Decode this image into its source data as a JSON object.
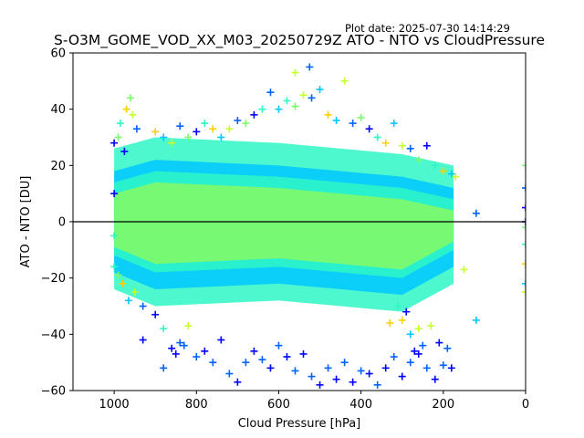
{
  "plot_date": "Plot date: 2025-07-30 14:14:29",
  "chart_data": {
    "type": "scatter",
    "title": "S-O3M_GOME_VOD_XX_M03_20250729Z ATO - NTO vs CloudPressure",
    "xlabel": "Cloud Pressure [hPa]",
    "ylabel": "ATO - NTO [DU]",
    "xlim": [
      1100,
      0
    ],
    "ylim": [
      -60,
      60
    ],
    "x_inverted": true,
    "xticks": [
      1000,
      800,
      600,
      400,
      200,
      0
    ],
    "yticks": [
      60,
      40,
      20,
      0,
      -20,
      -40,
      -60
    ],
    "xtick_labels": [
      "1000",
      "800",
      "600",
      "400",
      "200",
      "0"
    ],
    "ytick_labels": [
      "60",
      "40",
      "20",
      "0",
      "−20",
      "−40",
      "−60"
    ],
    "marker": "+",
    "reference_line_y": 0,
    "colormap": [
      "#0000ff",
      "#0062ff",
      "#00c8ff",
      "#2ff7c5",
      "#7cf96f",
      "#c5ff2e",
      "#ffd000"
    ],
    "grid": false,
    "points": [
      [
        1000,
        28
      ],
      [
        985,
        35
      ],
      [
        970,
        40
      ],
      [
        960,
        44
      ],
      [
        955,
        38
      ],
      [
        945,
        33
      ],
      [
        990,
        30
      ],
      [
        975,
        25
      ],
      [
        1000,
        -16
      ],
      [
        980,
        -22
      ],
      [
        965,
        -28
      ],
      [
        950,
        -25
      ],
      [
        930,
        -30
      ],
      [
        990,
        -19
      ],
      [
        1000,
        10
      ],
      [
        1000,
        -5
      ],
      [
        900,
        32
      ],
      [
        880,
        30
      ],
      [
        860,
        28
      ],
      [
        840,
        34
      ],
      [
        820,
        30
      ],
      [
        800,
        32
      ],
      [
        780,
        35
      ],
      [
        760,
        33
      ],
      [
        740,
        30
      ],
      [
        720,
        33
      ],
      [
        700,
        36
      ],
      [
        680,
        35
      ],
      [
        660,
        38
      ],
      [
        640,
        40
      ],
      [
        620,
        46
      ],
      [
        600,
        40
      ],
      [
        580,
        43
      ],
      [
        560,
        41
      ],
      [
        540,
        45
      ],
      [
        520,
        44
      ],
      [
        500,
        47
      ],
      [
        480,
        38
      ],
      [
        460,
        36
      ],
      [
        440,
        50
      ],
      [
        420,
        35
      ],
      [
        400,
        37
      ],
      [
        380,
        33
      ],
      [
        360,
        30
      ],
      [
        340,
        28
      ],
      [
        320,
        35
      ],
      [
        300,
        27
      ],
      [
        280,
        26
      ],
      [
        260,
        22
      ],
      [
        240,
        27
      ],
      [
        220,
        20
      ],
      [
        200,
        18
      ],
      [
        180,
        17
      ],
      [
        170,
        16
      ],
      [
        560,
        53
      ],
      [
        525,
        55
      ],
      [
        900,
        -33
      ],
      [
        880,
        -38
      ],
      [
        860,
        -45
      ],
      [
        840,
        -43
      ],
      [
        820,
        -37
      ],
      [
        800,
        -48
      ],
      [
        780,
        -46
      ],
      [
        760,
        -50
      ],
      [
        740,
        -42
      ],
      [
        720,
        -54
      ],
      [
        700,
        -57
      ],
      [
        680,
        -50
      ],
      [
        660,
        -46
      ],
      [
        640,
        -49
      ],
      [
        620,
        -52
      ],
      [
        600,
        -44
      ],
      [
        580,
        -48
      ],
      [
        560,
        -53
      ],
      [
        540,
        -47
      ],
      [
        520,
        -55
      ],
      [
        500,
        -58
      ],
      [
        480,
        -52
      ],
      [
        460,
        -56
      ],
      [
        440,
        -50
      ],
      [
        420,
        -57
      ],
      [
        400,
        -53
      ],
      [
        380,
        -54
      ],
      [
        360,
        -58
      ],
      [
        340,
        -52
      ],
      [
        320,
        -48
      ],
      [
        300,
        -55
      ],
      [
        280,
        -50
      ],
      [
        260,
        -47
      ],
      [
        240,
        -52
      ],
      [
        220,
        -56
      ],
      [
        200,
        -51
      ],
      [
        180,
        -52
      ],
      [
        190,
        -45
      ],
      [
        210,
        -43
      ],
      [
        230,
        -37
      ],
      [
        930,
        -42
      ],
      [
        880,
        -52
      ],
      [
        850,
        -47
      ],
      [
        830,
        -44
      ],
      [
        300,
        -35
      ],
      [
        280,
        -40
      ],
      [
        260,
        -38
      ],
      [
        250,
        -44
      ],
      [
        270,
        -46
      ],
      [
        290,
        -32
      ],
      [
        310,
        -30
      ],
      [
        330,
        -36
      ],
      [
        120,
        -35
      ],
      [
        150,
        -17
      ],
      [
        120,
        3
      ],
      [
        0,
        20
      ],
      [
        0,
        5
      ],
      [
        0,
        -8
      ],
      [
        0,
        -15
      ],
      [
        0,
        -22
      ],
      [
        0,
        -25
      ],
      [
        0,
        12
      ],
      [
        0,
        -2
      ],
      [
        0,
        0
      ]
    ]
  }
}
